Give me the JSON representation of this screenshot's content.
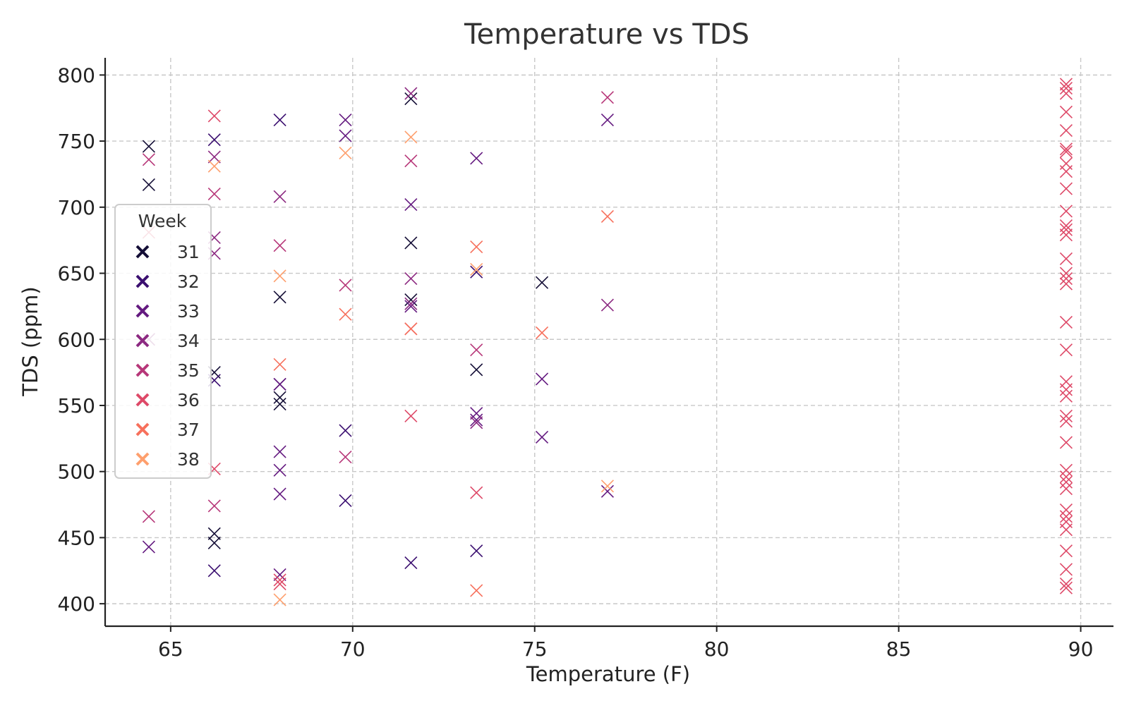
{
  "chart_data": {
    "type": "scatter",
    "title": "Temperature vs TDS",
    "xlabel": "Temperature (F)",
    "ylabel": "TDS (ppm)",
    "xlim": [
      63.2,
      90.9
    ],
    "ylim": [
      383,
      813
    ],
    "x_ticks": [
      65,
      70,
      75,
      80,
      85,
      90
    ],
    "y_ticks": [
      400,
      450,
      500,
      550,
      600,
      650,
      700,
      750,
      800
    ],
    "grid": true,
    "marker": "x",
    "legend": {
      "title": "Week",
      "placement": "center-left"
    },
    "series": [
      {
        "name": "31",
        "color": "#140e36",
        "points": [
          [
            64.4,
            746
          ],
          [
            64.4,
            717
          ],
          [
            66.2,
            575
          ],
          [
            66.2,
            453
          ],
          [
            66.2,
            446
          ],
          [
            68.0,
            632
          ],
          [
            68.0,
            556
          ],
          [
            68.0,
            551
          ],
          [
            71.6,
            782
          ],
          [
            71.6,
            673
          ],
          [
            71.6,
            630
          ],
          [
            73.4,
            577
          ],
          [
            75.2,
            643
          ]
        ]
      },
      {
        "name": "32",
        "color": "#3b0f70",
        "points": [
          [
            66.2,
            751
          ],
          [
            66.2,
            569
          ],
          [
            66.2,
            425
          ],
          [
            68.0,
            766
          ],
          [
            68.0,
            566
          ],
          [
            69.8,
            531
          ],
          [
            69.8,
            478
          ],
          [
            71.6,
            431
          ],
          [
            73.4,
            440
          ],
          [
            73.4,
            651
          ]
        ]
      },
      {
        "name": "33",
        "color": "#641a80",
        "points": [
          [
            64.4,
            443
          ],
          [
            68.0,
            483
          ],
          [
            68.0,
            501
          ],
          [
            68.0,
            515
          ],
          [
            68.0,
            566
          ],
          [
            68.0,
            422
          ],
          [
            69.8,
            766
          ],
          [
            69.8,
            754
          ],
          [
            71.6,
            625
          ],
          [
            71.6,
            702
          ],
          [
            73.4,
            737
          ],
          [
            73.4,
            544
          ],
          [
            73.4,
            539
          ],
          [
            75.2,
            570
          ],
          [
            75.2,
            526
          ],
          [
            77.0,
            766
          ],
          [
            77.0,
            485
          ]
        ]
      },
      {
        "name": "34",
        "color": "#8c2981",
        "points": [
          [
            64.4,
            600
          ],
          [
            66.2,
            677
          ],
          [
            66.2,
            665
          ],
          [
            66.2,
            738
          ],
          [
            68.0,
            708
          ],
          [
            71.6,
            646
          ],
          [
            71.6,
            627
          ],
          [
            71.6,
            786
          ],
          [
            73.4,
            537
          ],
          [
            77.0,
            626
          ]
        ]
      },
      {
        "name": "35",
        "color": "#b73779",
        "points": [
          [
            64.4,
            736
          ],
          [
            64.4,
            466
          ],
          [
            66.2,
            710
          ],
          [
            66.2,
            474
          ],
          [
            68.0,
            671
          ],
          [
            69.8,
            641
          ],
          [
            69.8,
            511
          ],
          [
            71.6,
            735
          ],
          [
            73.4,
            592
          ],
          [
            77.0,
            783
          ]
        ]
      },
      {
        "name": "36",
        "color": "#de4968",
        "points": [
          [
            64.4,
            681
          ],
          [
            66.2,
            769
          ],
          [
            66.2,
            502
          ],
          [
            68.0,
            418
          ],
          [
            68.0,
            415
          ],
          [
            71.6,
            542
          ],
          [
            71.6,
            608
          ],
          [
            73.4,
            484
          ],
          [
            89.6,
            793
          ],
          [
            89.6,
            790
          ],
          [
            89.6,
            786
          ],
          [
            89.6,
            772
          ],
          [
            89.6,
            758
          ],
          [
            89.6,
            744
          ],
          [
            89.6,
            742
          ],
          [
            89.6,
            733
          ],
          [
            89.6,
            727
          ],
          [
            89.6,
            714
          ],
          [
            89.6,
            697
          ],
          [
            89.6,
            686
          ],
          [
            89.6,
            683
          ],
          [
            89.6,
            679
          ],
          [
            89.6,
            661
          ],
          [
            89.6,
            650
          ],
          [
            89.6,
            646
          ],
          [
            89.6,
            642
          ],
          [
            89.6,
            613
          ],
          [
            89.6,
            592
          ],
          [
            89.6,
            568
          ],
          [
            89.6,
            562
          ],
          [
            89.6,
            557
          ],
          [
            89.6,
            542
          ],
          [
            89.6,
            538
          ],
          [
            89.6,
            522
          ],
          [
            89.6,
            501
          ],
          [
            89.6,
            496
          ],
          [
            89.6,
            492
          ],
          [
            89.6,
            487
          ],
          [
            89.6,
            471
          ],
          [
            89.6,
            466
          ],
          [
            89.6,
            462
          ],
          [
            89.6,
            456
          ],
          [
            89.6,
            440
          ],
          [
            89.6,
            426
          ],
          [
            89.6,
            415
          ],
          [
            89.6,
            412
          ]
        ]
      },
      {
        "name": "37",
        "color": "#f7705c",
        "points": [
          [
            68.0,
            581
          ],
          [
            69.8,
            619
          ],
          [
            71.6,
            608
          ],
          [
            73.4,
            670
          ],
          [
            73.4,
            410
          ],
          [
            75.2,
            605
          ],
          [
            77.0,
            693
          ]
        ]
      },
      {
        "name": "38",
        "color": "#fe9f6d",
        "points": [
          [
            66.2,
            731
          ],
          [
            68.0,
            648
          ],
          [
            68.0,
            403
          ],
          [
            69.8,
            741
          ],
          [
            71.6,
            753
          ],
          [
            73.4,
            653
          ],
          [
            77.0,
            489
          ]
        ]
      }
    ]
  }
}
